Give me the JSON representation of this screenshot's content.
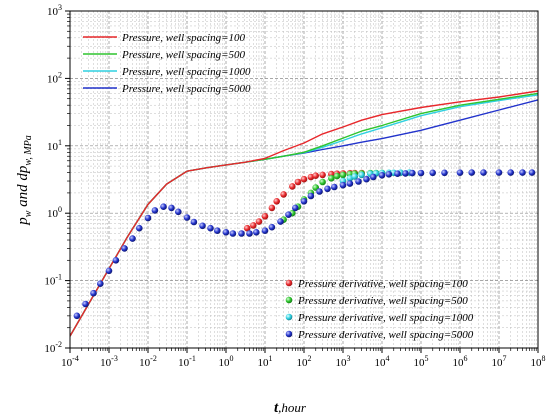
{
  "chart_data": {
    "type": "line",
    "xlabel": {
      "main": "t",
      "sub": ",hour"
    },
    "ylabel": {
      "main": "p",
      "sub1": "w",
      "mid": " and dp",
      "sub2": "w, MPa"
    },
    "xscale": "log",
    "yscale": "log",
    "xlim": [
      0.0001,
      100000000
    ],
    "ylim": [
      0.01,
      1000
    ],
    "grid": true,
    "x_ticks": [
      {
        "base": "10",
        "exp": "-4"
      },
      {
        "base": "10",
        "exp": "-3"
      },
      {
        "base": "10",
        "exp": "-2"
      },
      {
        "base": "10",
        "exp": "-1"
      },
      {
        "base": "10",
        "exp": "0"
      },
      {
        "base": "10",
        "exp": "1"
      },
      {
        "base": "10",
        "exp": "2"
      },
      {
        "base": "10",
        "exp": "3"
      },
      {
        "base": "10",
        "exp": "4"
      },
      {
        "base": "10",
        "exp": "5"
      },
      {
        "base": "10",
        "exp": "6"
      },
      {
        "base": "10",
        "exp": "7"
      },
      {
        "base": "10",
        "exp": "8"
      }
    ],
    "y_ticks": [
      {
        "base": "10",
        "exp": "-2"
      },
      {
        "base": "10",
        "exp": "-1"
      },
      {
        "base": "10",
        "exp": "0"
      },
      {
        "base": "10",
        "exp": "1"
      },
      {
        "base": "10",
        "exp": "2"
      },
      {
        "base": "10",
        "exp": "3"
      }
    ],
    "legend_top": {
      "position": "top-left",
      "items": [
        "Pressure, well spacing=100",
        "Pressure, well spacing=500",
        "Pressure, well spacing=1000",
        "Pressure, well spacing=5000"
      ]
    },
    "legend_bottom": {
      "position": "bottom-right",
      "items": [
        "Pressure derivative, well spacing=100",
        "Pressure derivative, well spacing=500",
        "Pressure derivative, well spacing=1000",
        "Pressure derivative, well spacing=5000"
      ]
    },
    "series": [
      {
        "name": "Pressure, well spacing=100",
        "kind": "line",
        "color": "#e8282c",
        "x": [
          0.0001,
          0.0003,
          0.001,
          0.003,
          0.01,
          0.03,
          0.1,
          0.3,
          1,
          3,
          10,
          30,
          100,
          300,
          1000,
          3000,
          10000,
          100000,
          1000000,
          10000000,
          100000000
        ],
        "y": [
          0.015,
          0.045,
          0.15,
          0.45,
          1.35,
          2.7,
          4.2,
          4.7,
          5.2,
          5.7,
          6.5,
          8.5,
          11,
          15,
          19,
          24,
          29,
          37,
          45,
          53,
          65
        ]
      },
      {
        "name": "Pressure, well spacing=500",
        "kind": "line",
        "color": "#2ec42e",
        "x": [
          0.0001,
          0.0003,
          0.001,
          0.003,
          0.01,
          0.03,
          0.1,
          0.3,
          1,
          3,
          10,
          30,
          100,
          300,
          1000,
          3000,
          10000,
          100000,
          1000000,
          10000000,
          100000000
        ],
        "y": [
          0.015,
          0.045,
          0.15,
          0.45,
          1.35,
          2.7,
          4.2,
          4.7,
          5.2,
          5.7,
          6.3,
          7,
          8,
          10,
          13,
          16.5,
          20,
          30,
          40,
          49,
          60
        ]
      },
      {
        "name": "Pressure, well spacing=1000",
        "kind": "line",
        "color": "#2fd0e0",
        "x": [
          0.0001,
          0.0003,
          0.001,
          0.003,
          0.01,
          0.03,
          0.1,
          0.3,
          1,
          3,
          10,
          30,
          100,
          300,
          1000,
          3000,
          10000,
          100000,
          1000000,
          10000000,
          100000000
        ],
        "y": [
          0.015,
          0.045,
          0.15,
          0.45,
          1.35,
          2.7,
          4.2,
          4.7,
          5.2,
          5.7,
          6.3,
          7,
          7.9,
          9.5,
          12,
          15,
          18.5,
          28,
          38,
          47,
          57
        ]
      },
      {
        "name": "Pressure, well spacing=5000",
        "kind": "line",
        "color": "#2233cc",
        "x": [
          0.0001,
          0.0003,
          0.001,
          0.003,
          0.01,
          0.03,
          0.1,
          0.3,
          1,
          3,
          10,
          30,
          100,
          300,
          1000,
          3000,
          10000,
          100000,
          1000000,
          10000000,
          100000000
        ],
        "y": [
          0.015,
          0.045,
          0.15,
          0.45,
          1.35,
          2.7,
          4.2,
          4.7,
          5.2,
          5.7,
          6.3,
          7,
          7.8,
          8.8,
          10,
          11.3,
          12.8,
          17,
          24,
          34,
          48
        ]
      },
      {
        "name": "Pressure derivative, well spacing=100",
        "kind": "marker",
        "color": "#e8282c",
        "x": [
          3.5,
          5,
          7,
          10,
          15,
          20,
          30,
          50,
          70,
          100,
          150,
          200,
          300,
          500,
          700,
          1000,
          1500,
          2000,
          3000
        ],
        "y": [
          0.6,
          0.66,
          0.75,
          0.9,
          1.2,
          1.5,
          1.9,
          2.5,
          2.9,
          3.2,
          3.45,
          3.6,
          3.7,
          3.8,
          3.85,
          3.9,
          3.92,
          3.94,
          3.95
        ]
      },
      {
        "name": "Pressure derivative, well spacing=500",
        "kind": "marker",
        "color": "#2ec42e",
        "x": [
          30,
          50,
          70,
          100,
          150,
          200,
          300,
          500,
          700,
          1000,
          1500,
          2000,
          3000,
          5000,
          7000,
          10000
        ],
        "y": [
          0.8,
          1.0,
          1.25,
          1.6,
          2.0,
          2.4,
          2.9,
          3.3,
          3.55,
          3.7,
          3.8,
          3.85,
          3.9,
          3.93,
          3.95,
          3.96
        ]
      },
      {
        "name": "Pressure derivative, well spacing=1000",
        "kind": "marker",
        "color": "#2fd0e0",
        "x": [
          1000,
          1500,
          2000,
          3000,
          5000,
          7000,
          10000,
          15000,
          20000,
          30000,
          50000
        ],
        "y": [
          3.0,
          3.3,
          3.5,
          3.7,
          3.85,
          3.9,
          3.95,
          3.97,
          3.98,
          3.99,
          4.0
        ]
      },
      {
        "name": "Pressure derivative, well spacing=5000",
        "kind": "marker",
        "color": "#2233cc",
        "x": [
          0.00015,
          0.00025,
          0.0004,
          0.0006,
          0.001,
          0.0015,
          0.0025,
          0.004,
          0.006,
          0.01,
          0.015,
          0.025,
          0.04,
          0.06,
          0.1,
          0.15,
          0.25,
          0.4,
          0.6,
          1,
          1.5,
          2.5,
          4,
          6,
          10,
          15,
          25,
          40,
          60,
          100,
          150,
          250,
          400,
          600,
          1000,
          1500,
          2500,
          4000,
          6000,
          10000,
          15000,
          25000,
          40000,
          60000,
          100000,
          200000,
          400000,
          1000000,
          2000000,
          4000000,
          10000000,
          20000000,
          40000000,
          70000000
        ],
        "y": [
          0.03,
          0.045,
          0.065,
          0.09,
          0.14,
          0.2,
          0.3,
          0.42,
          0.6,
          0.85,
          1.1,
          1.25,
          1.2,
          1.05,
          0.86,
          0.74,
          0.65,
          0.6,
          0.55,
          0.52,
          0.5,
          0.5,
          0.5,
          0.52,
          0.55,
          0.62,
          0.75,
          0.95,
          1.2,
          1.5,
          1.8,
          2.1,
          2.3,
          2.45,
          2.6,
          2.75,
          2.95,
          3.2,
          3.45,
          3.65,
          3.78,
          3.85,
          3.9,
          3.93,
          3.95,
          3.97,
          3.98,
          3.99,
          4.0,
          4.0,
          4.0,
          4.0,
          4.0,
          4.0
        ]
      }
    ]
  }
}
